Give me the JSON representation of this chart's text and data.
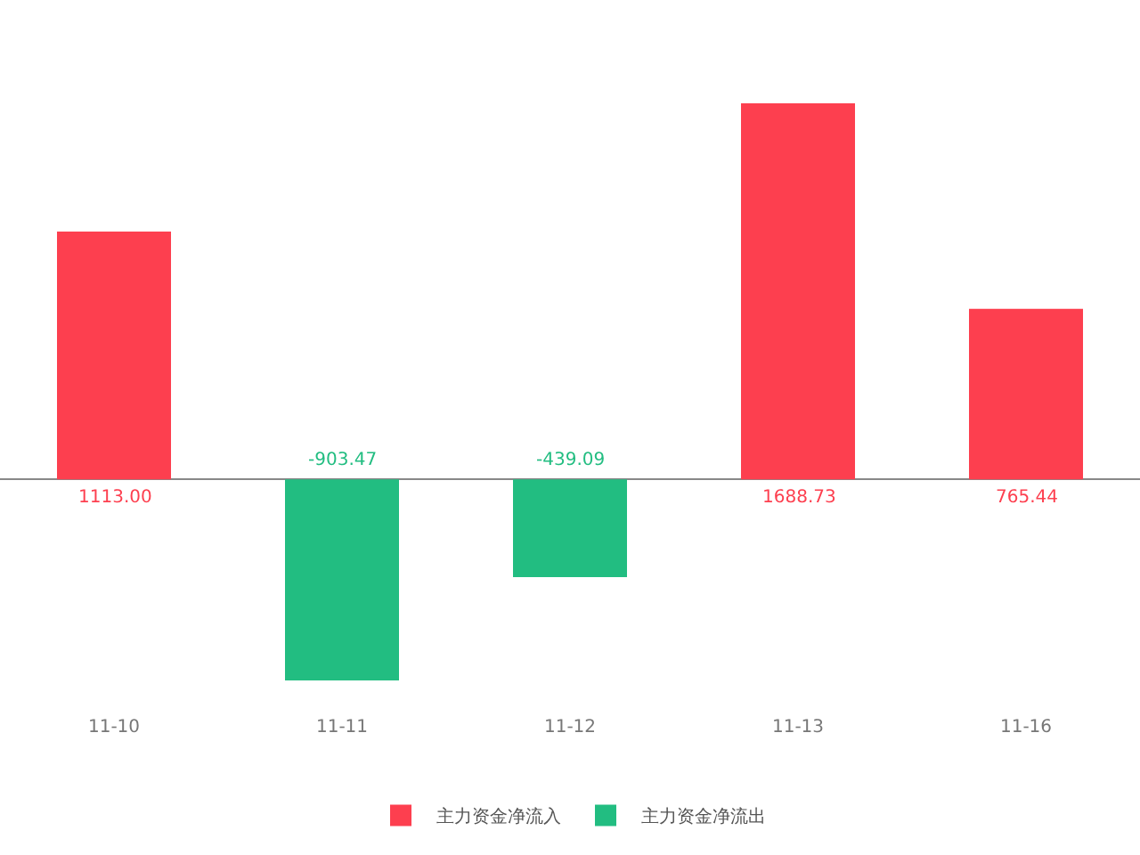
{
  "chart_data": {
    "type": "bar",
    "stacked": true,
    "categories": [
      "11-10",
      "11-11",
      "11-12",
      "11-13",
      "11-16"
    ],
    "series": [
      {
        "name": "主力资金净流入",
        "color": "#fd3f4f",
        "values": [
          1113.0,
          null,
          null,
          1688.73,
          765.44
        ],
        "value_labels": [
          "1113.00",
          null,
          null,
          "1688.73",
          "765.44"
        ]
      },
      {
        "name": "主力资金净流出",
        "color": "#22bd81",
        "values": [
          null,
          -903.47,
          -439.09,
          null,
          null
        ],
        "value_labels": [
          null,
          "-903.47",
          "-439.09",
          null,
          null
        ]
      }
    ],
    "legend": "bottom"
  }
}
